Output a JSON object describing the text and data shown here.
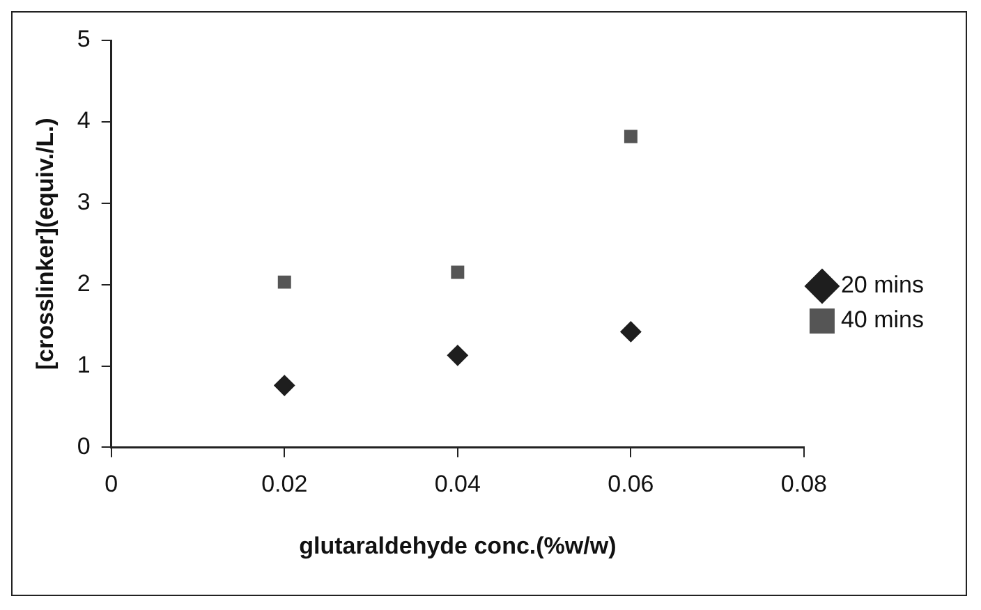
{
  "chart_data": {
    "type": "scatter",
    "xlabel": "glutaraldehyde conc.(%w/w)",
    "ylabel": "[crosslinker](equiv./L.)",
    "xlim": [
      0,
      0.08
    ],
    "xticks": [
      0,
      0.02,
      0.04,
      0.06,
      0.08
    ],
    "ylim": [
      0,
      5
    ],
    "yticks": [
      0,
      1,
      2,
      3,
      4,
      5
    ],
    "grid": false,
    "legend": "right",
    "series": [
      {
        "name": "20 mins",
        "color": "#1e1e1e",
        "marker": "diamond",
        "x": [
          0.02,
          0.04,
          0.06
        ],
        "values": [
          0.76,
          1.13,
          1.42
        ]
      },
      {
        "name": "40 mins",
        "color": "#555555",
        "marker": "square",
        "x": [
          0.02,
          0.04,
          0.06
        ],
        "values": [
          2.03,
          2.15,
          3.82
        ]
      }
    ]
  }
}
